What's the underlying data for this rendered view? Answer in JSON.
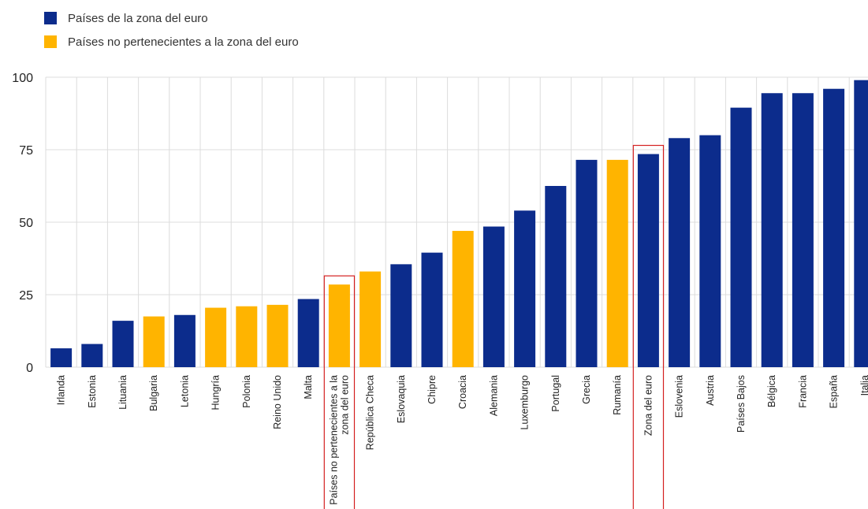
{
  "legend": {
    "items": [
      {
        "label": "Países de la zona del euro",
        "color": "#0c2c8c"
      },
      {
        "label": "Países no pertenecientes a la zona del euro",
        "color": "#ffb400"
      }
    ]
  },
  "chart_data": {
    "type": "bar",
    "ylim": [
      0,
      100
    ],
    "yticks": [
      0,
      25,
      50,
      75,
      100
    ],
    "grid": true,
    "legend_position": "top-left",
    "categories": [
      "Irlanda",
      "Estonia",
      "Lituania",
      "Bulgaria",
      "Letonia",
      "Hungría",
      "Polonia",
      "Reino Unido",
      "Malta",
      "Países no pertenecientes a la zona del euro",
      "República Checa",
      "Eslovaquia",
      "Chipre",
      "Croacia",
      "Alemania",
      "Luxemburgo",
      "Portugal",
      "Grecia",
      "Rumanía",
      "Zona del euro",
      "Eslovenia",
      "Austria",
      "Países Bajos",
      "Bélgica",
      "Francia",
      "España",
      "Italia"
    ],
    "values": [
      6.5,
      8,
      16,
      17.5,
      18,
      20.5,
      21,
      21.5,
      23.5,
      28.5,
      33,
      35.5,
      39.5,
      47,
      48.5,
      54,
      62.5,
      71.5,
      71.5,
      73.5,
      79,
      80,
      89.5,
      94.5,
      94.5,
      96,
      99
    ],
    "groups": [
      "euro",
      "euro",
      "euro",
      "non-euro",
      "euro",
      "non-euro",
      "non-euro",
      "non-euro",
      "euro",
      "non-euro",
      "non-euro",
      "euro",
      "euro",
      "non-euro",
      "euro",
      "euro",
      "euro",
      "euro",
      "non-euro",
      "euro",
      "euro",
      "euro",
      "euro",
      "euro",
      "euro",
      "euro",
      "euro"
    ],
    "highlighted": [
      "Países no pertenecientes a la zona del euro",
      "Zona del euro"
    ],
    "colors": {
      "euro": "#0c2c8c",
      "non-euro": "#ffb400",
      "highlight_box": "#d42020",
      "grid": "#dcdcdc"
    }
  }
}
